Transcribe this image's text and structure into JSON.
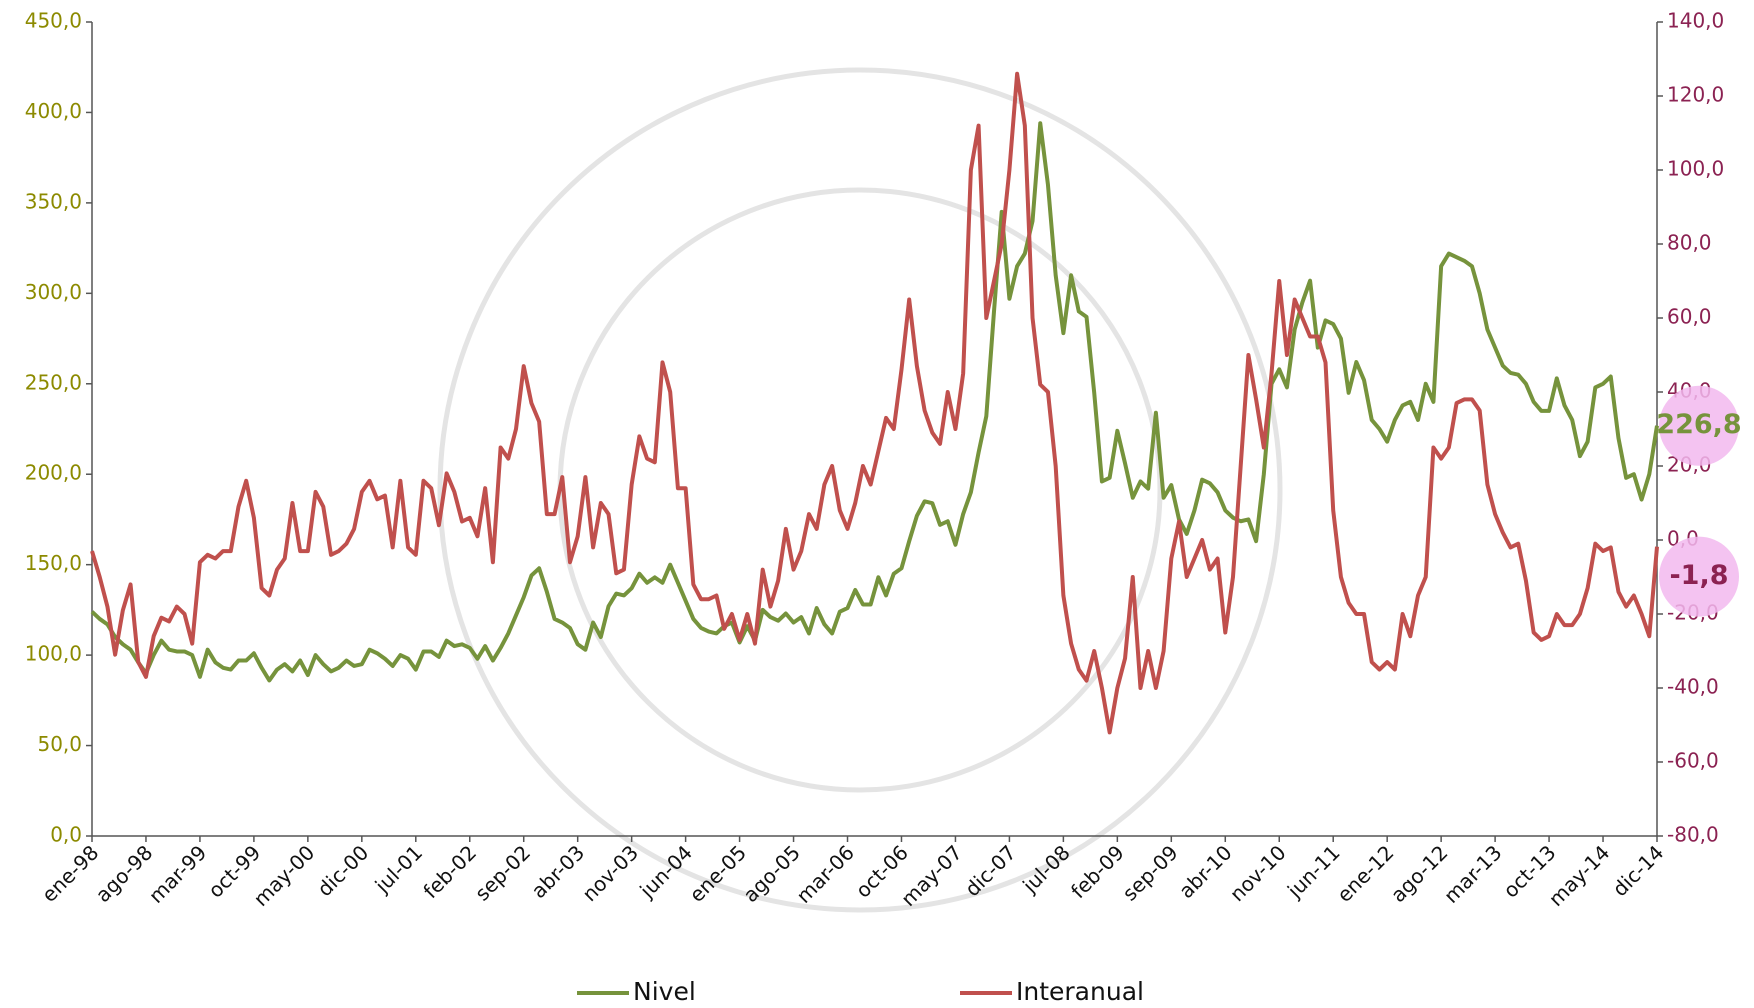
{
  "chart_data": {
    "type": "line",
    "categories": [
      "ene-98",
      null,
      null,
      null,
      null,
      null,
      null,
      "ago-98",
      null,
      null,
      null,
      null,
      null,
      null,
      "mar-99",
      null,
      null,
      null,
      null,
      null,
      null,
      "oct-99",
      null,
      null,
      null,
      null,
      null,
      null,
      "may-00",
      null,
      null,
      null,
      null,
      null,
      null,
      "dic-00",
      null,
      null,
      null,
      null,
      null,
      null,
      "jul-01",
      null,
      null,
      null,
      null,
      null,
      null,
      "feb-02",
      null,
      null,
      null,
      null,
      null,
      null,
      "sep-02",
      null,
      null,
      null,
      null,
      null,
      null,
      "abr-03",
      null,
      null,
      null,
      null,
      null,
      null,
      "nov-03",
      null,
      null,
      null,
      null,
      null,
      null,
      "jun-04",
      null,
      null,
      null,
      null,
      null,
      null,
      "ene-05",
      null,
      null,
      null,
      null,
      null,
      null,
      "ago-05",
      null,
      null,
      null,
      null,
      null,
      null,
      "mar-06",
      null,
      null,
      null,
      null,
      null,
      null,
      "oct-06",
      null,
      null,
      null,
      null,
      null,
      null,
      "may-07",
      null,
      null,
      null,
      null,
      null,
      null,
      "dic-07",
      null,
      null,
      null,
      null,
      null,
      null,
      "jul-08",
      null,
      null,
      null,
      null,
      null,
      null,
      "feb-09",
      null,
      null,
      null,
      null,
      null,
      null,
      "sep-09",
      null,
      null,
      null,
      null,
      null,
      null,
      "abr-10",
      null,
      null,
      null,
      null,
      null,
      null,
      "nov-10",
      null,
      null,
      null,
      null,
      null,
      null,
      "jun-11",
      null,
      null,
      null,
      null,
      null,
      null,
      "ene-12",
      null,
      null,
      null,
      null,
      null,
      null,
      "ago-12",
      null,
      null,
      null,
      null,
      null,
      null,
      "mar-13",
      null,
      null,
      null,
      null,
      null,
      null,
      "oct-13",
      null,
      null,
      null,
      null,
      null,
      null,
      "may-14",
      null,
      null,
      null,
      null,
      null,
      null,
      "dic-14"
    ],
    "series": [
      {
        "name": "Nivel",
        "color": "#76933c",
        "axis": "y",
        "values": [
          124,
          120,
          117,
          110,
          106,
          103,
          96,
          90,
          100,
          108,
          103,
          102,
          102,
          100,
          88,
          103,
          96,
          93,
          92,
          97,
          97,
          101,
          93,
          86,
          92,
          95,
          91,
          97,
          89,
          100,
          95,
          91,
          93,
          97,
          94,
          95,
          103,
          101,
          98,
          94,
          100,
          98,
          92,
          102,
          102,
          99,
          108,
          105,
          106,
          104,
          98,
          105,
          97,
          104,
          112,
          122,
          132,
          144,
          148,
          135,
          120,
          118,
          115,
          106,
          103,
          118,
          110,
          127,
          134,
          133,
          137,
          145,
          140,
          143,
          140,
          150,
          140,
          130,
          120,
          115,
          113,
          112,
          116,
          118,
          107,
          116,
          108,
          125,
          121,
          119,
          123,
          118,
          121,
          112,
          126,
          117,
          112,
          124,
          126,
          136,
          128,
          128,
          143,
          133,
          145,
          148,
          163,
          177,
          185,
          184,
          172,
          174,
          161,
          178,
          190,
          212,
          232,
          290,
          345,
          297,
          315,
          322,
          340,
          394,
          360,
          310,
          278,
          310,
          290,
          287,
          245,
          196,
          198,
          224,
          206,
          187,
          196,
          192,
          234,
          187,
          194,
          175,
          167,
          180,
          197,
          195,
          190,
          180,
          176,
          174,
          175,
          163,
          200,
          250,
          258,
          248,
          280,
          295,
          307,
          270,
          285,
          283,
          275,
          245,
          262,
          252,
          230,
          225,
          218,
          230,
          238,
          240,
          230,
          250,
          240,
          315,
          322,
          320,
          318,
          315,
          300,
          280,
          270,
          260,
          256,
          255,
          250,
          240,
          235,
          235,
          253,
          238,
          230,
          210,
          218,
          248,
          250,
          254,
          220,
          198,
          200,
          186,
          200,
          226.8
        ],
        "value_labels": [
          null,
          null,
          null,
          null,
          null,
          null,
          null,
          null,
          null,
          null,
          null,
          null,
          null,
          null,
          null,
          null,
          null,
          null,
          null,
          null,
          null,
          null,
          null,
          null,
          null,
          null,
          null,
          null,
          null,
          null,
          null,
          null,
          null,
          null,
          null,
          null,
          null,
          null,
          null,
          null,
          null,
          null,
          null,
          null,
          null,
          null,
          null,
          null,
          null,
          null,
          null,
          null,
          null,
          null,
          null,
          null,
          null,
          null,
          null,
          null,
          null,
          null,
          null,
          null,
          null,
          null,
          null,
          null,
          null,
          null,
          null,
          null,
          null,
          null,
          null,
          null,
          null,
          null,
          null,
          null,
          null,
          null,
          null,
          null,
          null,
          null,
          null,
          null,
          null,
          null,
          null,
          null,
          null,
          null,
          null,
          null,
          null,
          null,
          null,
          null,
          null,
          null,
          null,
          null,
          null,
          null,
          null,
          null,
          null,
          null,
          null,
          null,
          null,
          null,
          null,
          null,
          null,
          null,
          null,
          null,
          null,
          null,
          null,
          null,
          null,
          null,
          null,
          null,
          null,
          null,
          null,
          null,
          null,
          null,
          null,
          null,
          null,
          null,
          null,
          null,
          null,
          null,
          null,
          null,
          null,
          null,
          null,
          null,
          null,
          null,
          null,
          null,
          null,
          null,
          null,
          null,
          null,
          null,
          null,
          null,
          null,
          null,
          null,
          null,
          null,
          null,
          null,
          null,
          null,
          null,
          null,
          null,
          null,
          null,
          null,
          null,
          null,
          null,
          null,
          null,
          null,
          null,
          null,
          null,
          null,
          null,
          null,
          null,
          null,
          null,
          null,
          null,
          null,
          null,
          null,
          null,
          null,
          null,
          null,
          null,
          null,
          null,
          null,
          "226,8"
        ]
      },
      {
        "name": "Interanual",
        "color": "#c0504d",
        "axis": "y2",
        "values": [
          -3,
          -10,
          -18,
          -31,
          -19,
          -12,
          -33,
          -37,
          -26,
          -21,
          -22,
          -18,
          -20,
          -28,
          -6,
          -4,
          -5,
          -3,
          -3,
          9,
          16,
          6,
          -13,
          -15,
          -8,
          -5,
          10,
          -3,
          -3,
          13,
          9,
          -4,
          -3,
          -1,
          3,
          13,
          16,
          11,
          12,
          -2,
          16,
          -2,
          -4,
          16,
          14,
          4,
          18,
          13,
          5,
          6,
          1,
          14,
          -6,
          25,
          22,
          30,
          47,
          37,
          32,
          7,
          7,
          17,
          -6,
          1,
          17,
          -2,
          10,
          7,
          -9,
          -8,
          15,
          28,
          22,
          21,
          48,
          40,
          14,
          14,
          -12,
          -16,
          -16,
          -15,
          -24,
          -20,
          -27,
          -20,
          -28,
          -8,
          -18,
          -11,
          3,
          -8,
          -3,
          7,
          3,
          15,
          20,
          8,
          3,
          10,
          20,
          15,
          24,
          33,
          30,
          46,
          65,
          47,
          35,
          29,
          26,
          40,
          30,
          45,
          100,
          112,
          60,
          70,
          80,
          100,
          126,
          112,
          60,
          42,
          40,
          20,
          -15,
          -28,
          -35,
          -38,
          -30,
          -40,
          -52,
          -40,
          -32,
          -10,
          -40,
          -30,
          -40,
          -30,
          -5,
          5,
          -10,
          -5,
          0,
          -8,
          -5,
          -25,
          -10,
          20,
          50,
          38,
          25,
          45,
          70,
          50,
          65,
          60,
          55,
          55,
          48,
          8,
          -10,
          -17,
          -20,
          -20,
          -33,
          -35,
          -33,
          -35,
          -20,
          -26,
          -15,
          -10,
          25,
          22,
          25,
          37,
          38,
          38,
          35,
          15,
          7,
          2,
          -2,
          -1,
          -11,
          -25,
          -27,
          -26,
          -20,
          -23,
          -23,
          -20,
          -13,
          -1,
          -3,
          -2,
          -14,
          -18,
          -15,
          -20,
          -26,
          -1.8
        ],
        "value_labels": [
          null,
          null,
          null,
          null,
          null,
          null,
          null,
          null,
          null,
          null,
          null,
          null,
          null,
          null,
          null,
          null,
          null,
          null,
          null,
          null,
          null,
          null,
          null,
          null,
          null,
          null,
          null,
          null,
          null,
          null,
          null,
          null,
          null,
          null,
          null,
          null,
          null,
          null,
          null,
          null,
          null,
          null,
          null,
          null,
          null,
          null,
          null,
          null,
          null,
          null,
          null,
          null,
          null,
          null,
          null,
          null,
          null,
          null,
          null,
          null,
          null,
          null,
          null,
          null,
          null,
          null,
          null,
          null,
          null,
          null,
          null,
          null,
          null,
          null,
          null,
          null,
          null,
          null,
          null,
          null,
          null,
          null,
          null,
          null,
          null,
          null,
          null,
          null,
          null,
          null,
          null,
          null,
          null,
          null,
          null,
          null,
          null,
          null,
          null,
          null,
          null,
          null,
          null,
          null,
          null,
          null,
          null,
          null,
          null,
          null,
          null,
          null,
          null,
          null,
          null,
          null,
          null,
          null,
          null,
          null,
          null,
          null,
          null,
          null,
          null,
          null,
          null,
          null,
          null,
          null,
          null,
          null,
          null,
          null,
          null,
          null,
          null,
          null,
          null,
          null,
          null,
          null,
          null,
          null,
          null,
          null,
          null,
          null,
          null,
          null,
          null,
          null,
          null,
          null,
          null,
          null,
          null,
          null,
          null,
          null,
          null,
          null,
          null,
          null,
          null,
          null,
          null,
          null,
          null,
          null,
          null,
          null,
          null,
          null,
          null,
          null,
          null,
          null,
          null,
          null,
          null,
          null,
          null,
          null,
          null,
          null,
          null,
          null,
          null,
          null,
          null,
          null,
          null,
          null,
          null,
          null,
          null,
          null,
          null,
          null,
          null,
          null,
          null,
          "-1,8"
        ]
      }
    ],
    "ylim": [
      0,
      450
    ],
    "yticks": [
      {
        "value": 0,
        "label": "0,0"
      },
      {
        "value": 50,
        "label": "50,0"
      },
      {
        "value": 100,
        "label": "100,0"
      },
      {
        "value": 150,
        "label": "150,0"
      },
      {
        "value": 200,
        "label": "200,0"
      },
      {
        "value": 250,
        "label": "250,0"
      },
      {
        "value": 300,
        "label": "300,0"
      },
      {
        "value": 350,
        "label": "350,0"
      },
      {
        "value": 400,
        "label": "400,0"
      },
      {
        "value": 450,
        "label": "450,0"
      }
    ],
    "y2lim": [
      -80,
      140
    ],
    "y2ticks": [
      {
        "value": -80,
        "label": "-80,0"
      },
      {
        "value": -60,
        "label": "-60,0"
      },
      {
        "value": -40,
        "label": "-40,0"
      },
      {
        "value": -20,
        "label": "-20,0"
      },
      {
        "value": 0,
        "label": "0,0"
      },
      {
        "value": 20,
        "label": "20,0"
      },
      {
        "value": 40,
        "label": "40,0"
      },
      {
        "value": 60,
        "label": "60,0"
      },
      {
        "value": 80,
        "label": "80,0"
      },
      {
        "value": 100,
        "label": "100,0"
      },
      {
        "value": 120,
        "label": "120,0"
      },
      {
        "value": 140,
        "label": "140,0"
      }
    ],
    "y_axis_color": "#8c8a00",
    "y2_axis_color": "#8b2252",
    "grid": false,
    "legend": "bottom"
  }
}
